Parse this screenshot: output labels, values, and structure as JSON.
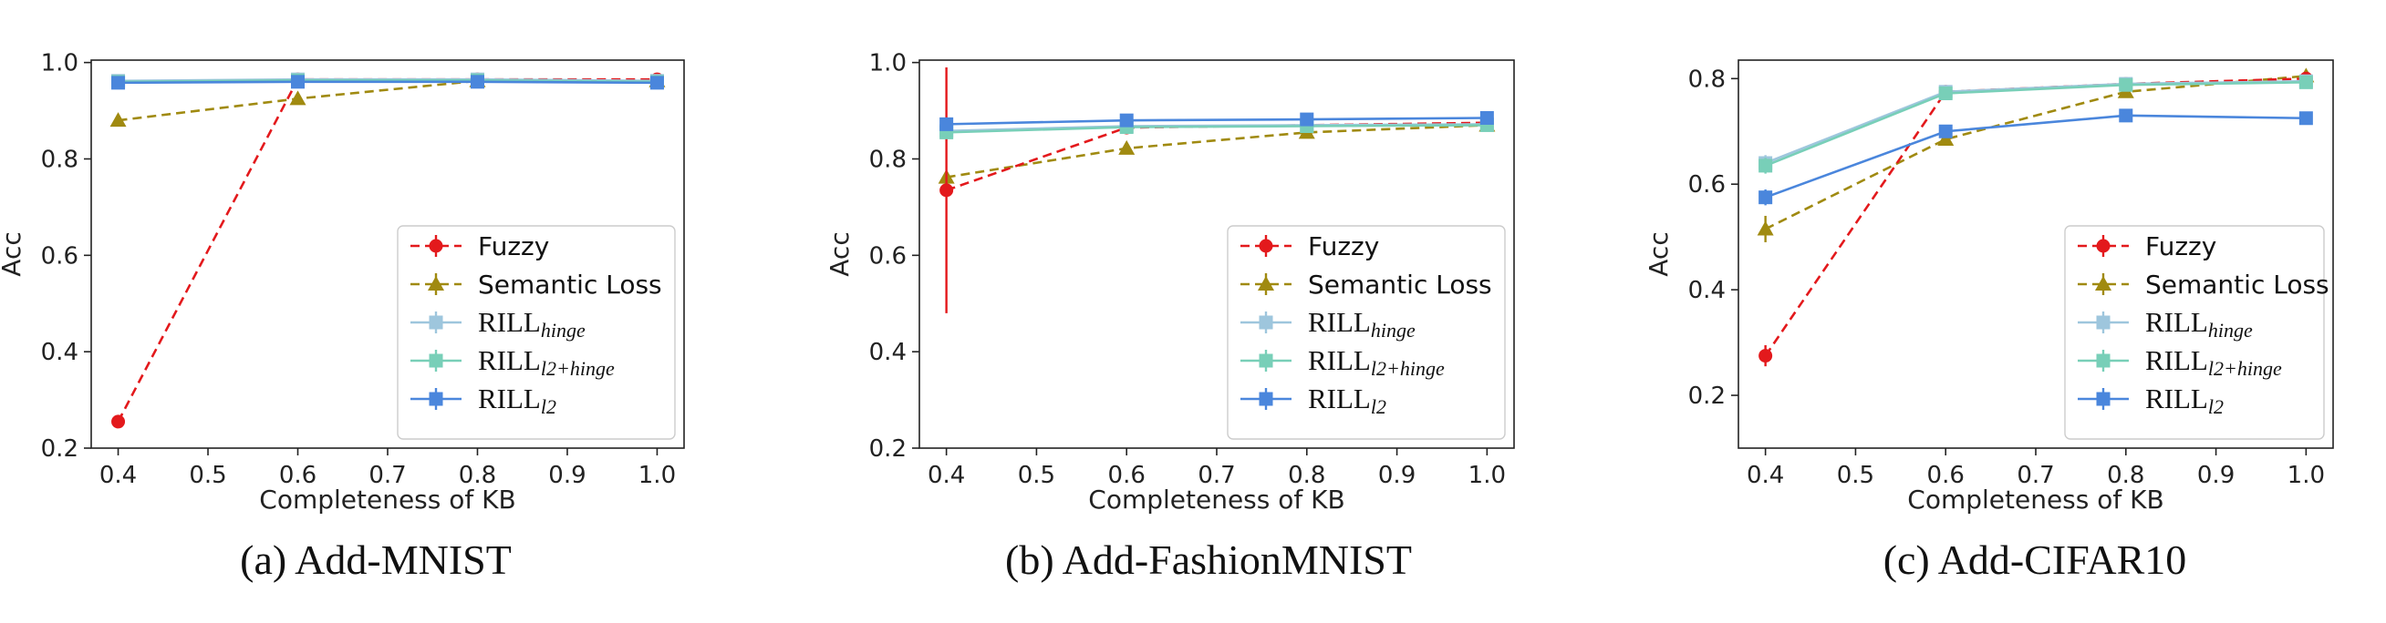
{
  "chart_data": [
    {
      "type": "line",
      "caption": "(a) Add-MNIST",
      "xlabel": "Completeness of KB",
      "ylabel": "Acc",
      "x": [
        0.4,
        0.6,
        0.8,
        1.0
      ],
      "xticks": [
        "0.4",
        "0.5",
        "0.6",
        "0.7",
        "0.8",
        "0.9",
        "1.0"
      ],
      "xtick_values": [
        0.4,
        0.5,
        0.6,
        0.7,
        0.8,
        0.9,
        1.0
      ],
      "yticks": [
        "0.2",
        "0.4",
        "0.6",
        "0.8",
        "1.0"
      ],
      "ytick_values": [
        0.2,
        0.4,
        0.6,
        0.8,
        1.0
      ],
      "xlim": [
        0.37,
        1.03
      ],
      "ylim": [
        0.2,
        1.005
      ],
      "legend_position": "lower-right",
      "series": [
        {
          "name": "Fuzzy",
          "values": [
            0.255,
            0.965,
            0.965,
            0.965
          ],
          "err": [
            0.01,
            0.003,
            0.003,
            0.003
          ]
        },
        {
          "name": "Semantic Loss",
          "values": [
            0.88,
            0.925,
            0.962,
            0.962
          ],
          "err": [
            0.005,
            0.005,
            0.004,
            0.004
          ]
        },
        {
          "name": "RILL",
          "sub": "hinge",
          "values": [
            0.962,
            0.965,
            0.965,
            0.962
          ],
          "err": [
            0.003,
            0.003,
            0.003,
            0.003
          ]
        },
        {
          "name": "RILL",
          "sub": "l2+hinge",
          "values": [
            0.96,
            0.963,
            0.963,
            0.96
          ],
          "err": [
            0.003,
            0.003,
            0.003,
            0.003
          ]
        },
        {
          "name": "RILL",
          "sub": "l2",
          "values": [
            0.958,
            0.96,
            0.96,
            0.958
          ],
          "err": [
            0.003,
            0.003,
            0.003,
            0.003
          ]
        }
      ]
    },
    {
      "type": "line",
      "caption": "(b) Add-FashionMNIST",
      "xlabel": "Completeness of KB",
      "ylabel": "Acc",
      "x": [
        0.4,
        0.6,
        0.8,
        1.0
      ],
      "xticks": [
        "0.4",
        "0.5",
        "0.6",
        "0.7",
        "0.8",
        "0.9",
        "1.0"
      ],
      "xtick_values": [
        0.4,
        0.5,
        0.6,
        0.7,
        0.8,
        0.9,
        1.0
      ],
      "yticks": [
        "0.2",
        "0.4",
        "0.6",
        "0.8",
        "1.0"
      ],
      "ytick_values": [
        0.2,
        0.4,
        0.6,
        0.8,
        1.0
      ],
      "xlim": [
        0.37,
        1.03
      ],
      "ylim": [
        0.2,
        1.005
      ],
      "legend_position": "lower-right",
      "series": [
        {
          "name": "Fuzzy",
          "values": [
            0.735,
            0.865,
            0.87,
            0.875
          ],
          "err": [
            0.255,
            0.005,
            0.005,
            0.005
          ]
        },
        {
          "name": "Semantic Loss",
          "values": [
            0.762,
            0.822,
            0.855,
            0.87
          ],
          "err": [
            0.006,
            0.005,
            0.005,
            0.005
          ]
        },
        {
          "name": "RILL",
          "sub": "hinge",
          "values": [
            0.858,
            0.868,
            0.87,
            0.872
          ],
          "err": [
            0.004,
            0.004,
            0.004,
            0.004
          ]
        },
        {
          "name": "RILL",
          "sub": "l2+hinge",
          "values": [
            0.855,
            0.866,
            0.868,
            0.87
          ],
          "err": [
            0.004,
            0.004,
            0.004,
            0.004
          ]
        },
        {
          "name": "RILL",
          "sub": "l2",
          "values": [
            0.872,
            0.88,
            0.882,
            0.885
          ],
          "err": [
            0.004,
            0.004,
            0.004,
            0.004
          ]
        }
      ]
    },
    {
      "type": "line",
      "caption": "(c) Add-CIFAR10",
      "xlabel": "Completeness of KB",
      "ylabel": "Acc",
      "x": [
        0.4,
        0.6,
        0.8,
        1.0
      ],
      "xticks": [
        "0.4",
        "0.5",
        "0.6",
        "0.7",
        "0.8",
        "0.9",
        "1.0"
      ],
      "xtick_values": [
        0.4,
        0.5,
        0.6,
        0.7,
        0.8,
        0.9,
        1.0
      ],
      "yticks": [
        "0.2",
        "0.4",
        "0.6",
        "0.8"
      ],
      "ytick_values": [
        0.2,
        0.4,
        0.6,
        0.8
      ],
      "xlim": [
        0.37,
        1.03
      ],
      "ylim": [
        0.1,
        0.835
      ],
      "legend_position": "lower-right",
      "series": [
        {
          "name": "Fuzzy",
          "values": [
            0.275,
            0.775,
            0.79,
            0.8
          ],
          "err": [
            0.02,
            0.005,
            0.005,
            0.005
          ]
        },
        {
          "name": "Semantic Loss",
          "values": [
            0.515,
            0.685,
            0.775,
            0.805
          ],
          "err": [
            0.025,
            0.008,
            0.006,
            0.006
          ]
        },
        {
          "name": "RILL",
          "sub": "hinge",
          "values": [
            0.64,
            0.775,
            0.79,
            0.795
          ],
          "err": [
            0.015,
            0.005,
            0.005,
            0.005
          ]
        },
        {
          "name": "RILL",
          "sub": "l2+hinge",
          "values": [
            0.635,
            0.772,
            0.788,
            0.793
          ],
          "err": [
            0.015,
            0.005,
            0.005,
            0.005
          ]
        },
        {
          "name": "RILL",
          "sub": "l2",
          "values": [
            0.575,
            0.7,
            0.73,
            0.725
          ],
          "err": [
            0.015,
            0.005,
            0.005,
            0.005
          ]
        }
      ]
    }
  ],
  "styles": {
    "series_colors": [
      "#e3191c",
      "#a08a10",
      "#9ec6dd",
      "#78cfb8",
      "#4a86dc"
    ],
    "series_markers": [
      "circle",
      "triangle",
      "square",
      "square",
      "square"
    ],
    "series_dashes": [
      "dashed",
      "dashed",
      "solid",
      "solid",
      "solid"
    ]
  }
}
